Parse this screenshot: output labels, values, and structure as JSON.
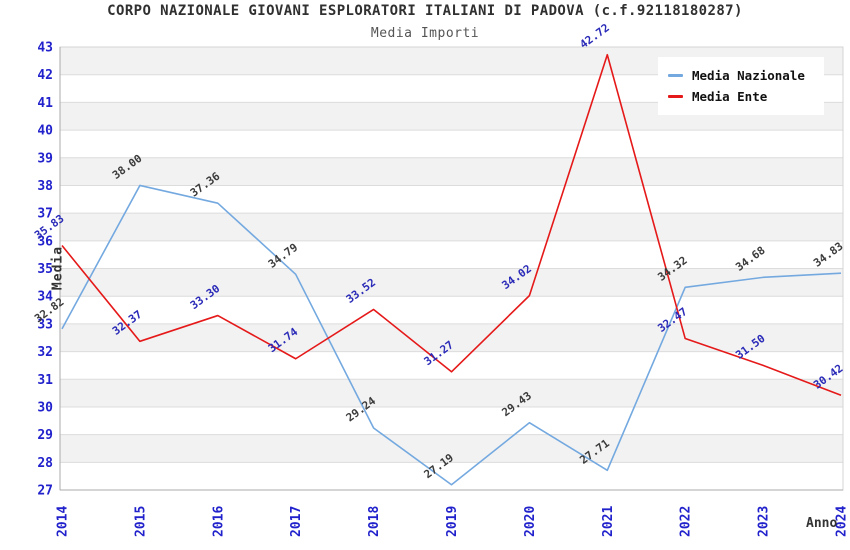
{
  "header": {
    "title": "CORPO NAZIONALE GIOVANI ESPLORATORI ITALIANI DI PADOVA (c.f.92118180287)",
    "subtitle": "Media Importi"
  },
  "chart_data": {
    "type": "line",
    "x": [
      2014,
      2015,
      2016,
      2017,
      2018,
      2019,
      2020,
      2021,
      2022,
      2023,
      2024
    ],
    "xlabel": "Anno",
    "ylabel": "Media",
    "ylim": [
      27,
      43
    ],
    "y_tick_step": 1,
    "grid": "horizontal-bands",
    "legend_position": "top-right",
    "series": [
      {
        "name": "Media Nazionale",
        "color": "#74A9E0",
        "label_color": "#3B3B3B",
        "values": [
          32.82,
          38.0,
          37.36,
          34.79,
          29.24,
          27.19,
          29.43,
          27.71,
          34.32,
          34.68,
          34.83
        ]
      },
      {
        "name": "Media Ente",
        "color": "#E51919",
        "label_color": "#2A2AB8",
        "values": [
          35.83,
          32.37,
          33.3,
          31.74,
          33.52,
          31.27,
          34.02,
          42.72,
          32.47,
          31.5,
          30.42
        ]
      }
    ],
    "colors": {
      "tick_label": "#2222CC",
      "band_fill": "#F2F2F2",
      "gridline": "#DCDCDC",
      "border": "#D4D4D4",
      "axis": "#ABABAB"
    }
  }
}
